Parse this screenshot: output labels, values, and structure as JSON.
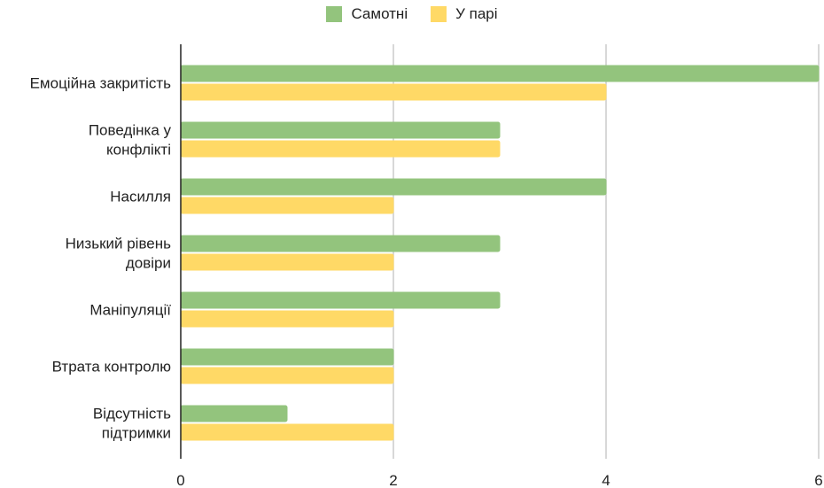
{
  "chart_data": {
    "type": "bar",
    "orientation": "horizontal",
    "categories": [
      [
        "Емоційна закритість"
      ],
      [
        "Поведінка у",
        "конфлікті"
      ],
      [
        "Насилля"
      ],
      [
        "Низький рівень",
        "довіри"
      ],
      [
        "Маніпуляції"
      ],
      [
        "Втрата контролю"
      ],
      [
        "Відсутність",
        "підтримки"
      ]
    ],
    "series": [
      {
        "name": "Самотні",
        "color": "#93c47d",
        "values": [
          6,
          3,
          4,
          3,
          3,
          2,
          1
        ]
      },
      {
        "name": "У парі",
        "color": "#ffd966",
        "values": [
          4,
          3,
          2,
          2,
          2,
          2,
          2
        ]
      }
    ],
    "xlim": [
      0,
      6
    ],
    "xticks": [
      "0",
      "2",
      "4",
      "6"
    ],
    "xtick_values": [
      0,
      2,
      4,
      6
    ],
    "grid": true,
    "legend_position": "top-center"
  }
}
